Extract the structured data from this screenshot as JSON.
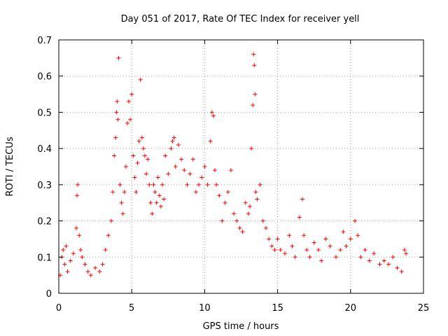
{
  "chart_data": {
    "type": "scatter",
    "title": "Day 051 of 2017, Rate Of TEC Index for receiver yell",
    "xlabel": "GPS time / hours",
    "ylabel": "ROTI / TECUs",
    "xlim": [
      0,
      25
    ],
    "ylim": [
      0,
      0.7
    ],
    "x_ticks": [
      "0",
      "5",
      "10",
      "15",
      "20",
      "25"
    ],
    "y_ticks": [
      "0",
      "0.1",
      "0.2",
      "0.3",
      "0.4",
      "0.5",
      "0.6",
      "0.7"
    ],
    "grid": true,
    "marker": "plus",
    "color": "#ff0000",
    "series": [
      {
        "x": [
          0.1,
          0.2,
          0.3,
          0.4,
          0.5,
          0.6,
          0.8,
          1.0,
          1.2,
          1.25,
          1.3,
          1.4,
          1.5,
          1.6,
          1.8,
          2.0,
          2.2,
          2.5,
          2.8,
          3.0,
          3.2,
          3.4,
          3.6,
          3.7,
          3.8,
          3.9,
          3.95,
          4.0,
          4.05,
          4.1,
          4.2,
          4.3,
          4.4,
          4.5,
          4.6,
          4.7,
          4.8,
          4.9,
          5.0,
          5.1,
          5.2,
          5.3,
          5.4,
          5.5,
          5.6,
          5.7,
          5.8,
          5.9,
          6.0,
          6.1,
          6.2,
          6.3,
          6.4,
          6.5,
          6.6,
          6.7,
          6.8,
          6.9,
          7.0,
          7.1,
          7.2,
          7.3,
          7.5,
          7.7,
          7.8,
          7.9,
          8.0,
          8.2,
          8.4,
          8.6,
          8.8,
          9.0,
          9.2,
          9.4,
          9.6,
          9.8,
          10.0,
          10.2,
          10.4,
          10.5,
          10.6,
          10.7,
          10.8,
          11.0,
          11.2,
          11.4,
          11.6,
          11.8,
          12.0,
          12.2,
          12.4,
          12.6,
          12.8,
          13.0,
          13.1,
          13.2,
          13.3,
          13.35,
          13.4,
          13.45,
          13.5,
          13.6,
          13.8,
          14.0,
          14.2,
          14.4,
          14.6,
          14.8,
          15.0,
          15.2,
          15.5,
          15.8,
          16.0,
          16.2,
          16.5,
          16.7,
          16.8,
          17.0,
          17.2,
          17.5,
          17.8,
          18.0,
          18.3,
          18.6,
          19.0,
          19.3,
          19.5,
          19.7,
          20.0,
          20.3,
          20.5,
          20.7,
          21.0,
          21.3,
          21.6,
          22.0,
          22.3,
          22.6,
          22.9,
          23.2,
          23.5,
          23.7,
          23.8
        ],
        "y": [
          0.05,
          0.1,
          0.12,
          0.08,
          0.13,
          0.06,
          0.09,
          0.11,
          0.18,
          0.27,
          0.3,
          0.16,
          0.12,
          0.1,
          0.08,
          0.06,
          0.05,
          0.07,
          0.06,
          0.08,
          0.12,
          0.16,
          0.2,
          0.28,
          0.38,
          0.43,
          0.5,
          0.53,
          0.48,
          0.65,
          0.3,
          0.25,
          0.22,
          0.28,
          0.35,
          0.47,
          0.53,
          0.48,
          0.55,
          0.38,
          0.32,
          0.28,
          0.36,
          0.42,
          0.59,
          0.43,
          0.4,
          0.38,
          0.33,
          0.37,
          0.3,
          0.25,
          0.22,
          0.3,
          0.28,
          0.25,
          0.32,
          0.27,
          0.24,
          0.3,
          0.26,
          0.38,
          0.33,
          0.4,
          0.42,
          0.43,
          0.35,
          0.41,
          0.37,
          0.34,
          0.3,
          0.33,
          0.37,
          0.28,
          0.3,
          0.32,
          0.35,
          0.3,
          0.42,
          0.5,
          0.49,
          0.34,
          0.3,
          0.27,
          0.2,
          0.25,
          0.28,
          0.34,
          0.22,
          0.2,
          0.18,
          0.17,
          0.25,
          0.22,
          0.24,
          0.4,
          0.52,
          0.66,
          0.63,
          0.55,
          0.28,
          0.26,
          0.3,
          0.2,
          0.18,
          0.15,
          0.13,
          0.12,
          0.15,
          0.12,
          0.11,
          0.16,
          0.13,
          0.1,
          0.21,
          0.26,
          0.16,
          0.12,
          0.1,
          0.14,
          0.12,
          0.09,
          0.15,
          0.13,
          0.1,
          0.12,
          0.17,
          0.13,
          0.15,
          0.2,
          0.16,
          0.1,
          0.12,
          0.09,
          0.11,
          0.08,
          0.09,
          0.08,
          0.1,
          0.07,
          0.06,
          0.12,
          0.11
        ]
      }
    ]
  }
}
